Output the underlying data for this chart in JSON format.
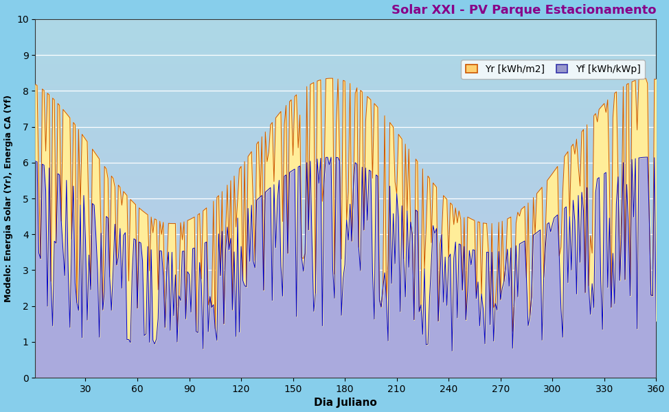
{
  "title": "Solar XXI - PV Parque Estacionamento",
  "xlabel": "Dia Juliano",
  "ylabel": "Modelo: Energia Solar (Yr), Energia CA (Yf)",
  "ylim": [
    0,
    10
  ],
  "yticks": [
    0,
    1,
    2,
    3,
    4,
    5,
    6,
    7,
    8,
    9,
    10
  ],
  "xticks": [
    30,
    60,
    90,
    120,
    150,
    180,
    210,
    240,
    270,
    300,
    330,
    360
  ],
  "fig_bg_color": "#87CEEB",
  "plot_bg_top": "#ADD8E6",
  "plot_bg_bottom": "#B8C8E8",
  "yr_fill_color": "#FFED99",
  "yr_line_color": "#CC5500",
  "yf_fill_color": "#AAAADD",
  "yf_line_color": "#0000CC",
  "title_color": "#880088",
  "grid_color": "#ffffff",
  "legend_yr_facecolor": "#FFD070",
  "legend_yr_edgecolor": "#CC5500",
  "legend_yf_facecolor": "#9999CC",
  "legend_yf_edgecolor": "#3333AA",
  "title_fontsize": 13,
  "axis_label_fontsize": 11,
  "ylabel_fontsize": 9,
  "tick_fontsize": 10,
  "seed": 1234,
  "yr_peak_day": 172,
  "yr_min_envelope": 4.3,
  "yr_max_envelope": 8.35,
  "yf_peak_day": 172,
  "yf_min_envelope": 3.5,
  "yf_max_envelope": 6.15,
  "yr_cloudy_prob": 0.38,
  "yf_cloudy_prob": 0.48,
  "yr_dip_strength": 0.75,
  "yf_dip_strength": 0.82
}
